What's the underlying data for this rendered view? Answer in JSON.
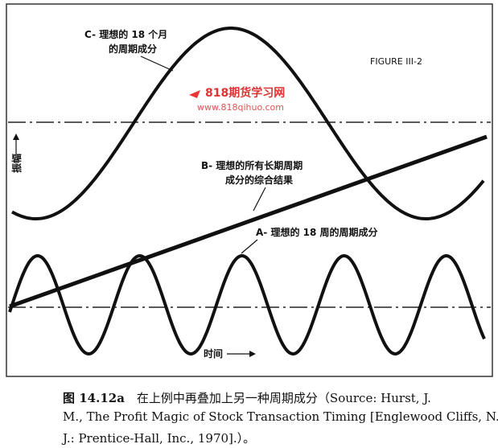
{
  "figure": {
    "curve_c_label": [
      "C- 理想的 18 个月",
      "的周期成分"
    ],
    "figure_id": "FIGURE III-2",
    "watermark": {
      "name": "818期货学习网",
      "url": "www.818qihuo.com"
    },
    "y_axis_label": "振幅",
    "line_b_label": [
      "B- 理想的所有长期周期",
      "成分的综合结果"
    ],
    "curve_a_label": "A- 理想的 18 周的周期成分",
    "x_axis_label": "时间"
  },
  "caption": {
    "number": "图 14.12a",
    "lines": [
      "在上例中再叠加上另一种周期成分（Source: Hurst, J.",
      "M., The Profit Magic of Stock Transaction Timing [Englewood Cliffs, N.",
      "J.: Prentice-Hall, Inc., 1970].）。"
    ]
  }
}
